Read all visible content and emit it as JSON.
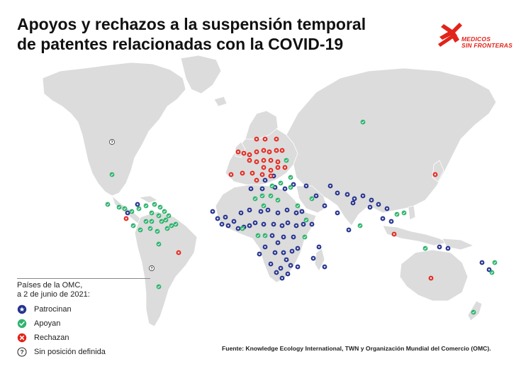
{
  "title": {
    "line1": "Apoyos y rechazos a la suspensión temporal",
    "line2": "de patentes relacionadas con la COVID-19"
  },
  "logo": {
    "text_line1": "MEDICOS",
    "text_line2": "SIN FRONTERAS",
    "color": "#e2231a"
  },
  "legend": {
    "header_line1": "Países de la OMC,",
    "header_line2": "a 2 de junio de 2021:",
    "items": [
      {
        "label": "Patrocinan",
        "icon": "star-icon",
        "color": "#25338f"
      },
      {
        "label": "Apoyan",
        "icon": "check-icon",
        "color": "#2fb46e"
      },
      {
        "label": "Rechazan",
        "icon": "cross-icon",
        "color": "#e2231a"
      },
      {
        "label": "Sin posición definida",
        "icon": "question-icon",
        "color": "#ffffff"
      }
    ]
  },
  "source": "Fuente: Knowledge Ecology International, TWN y Organización Mundial del Comercio (OMC).",
  "colors": {
    "land": "#dcdcdc",
    "border": "#ffffff",
    "sponsor": "#25338f",
    "support": "#2fb46e",
    "reject": "#e2231a"
  }
}
